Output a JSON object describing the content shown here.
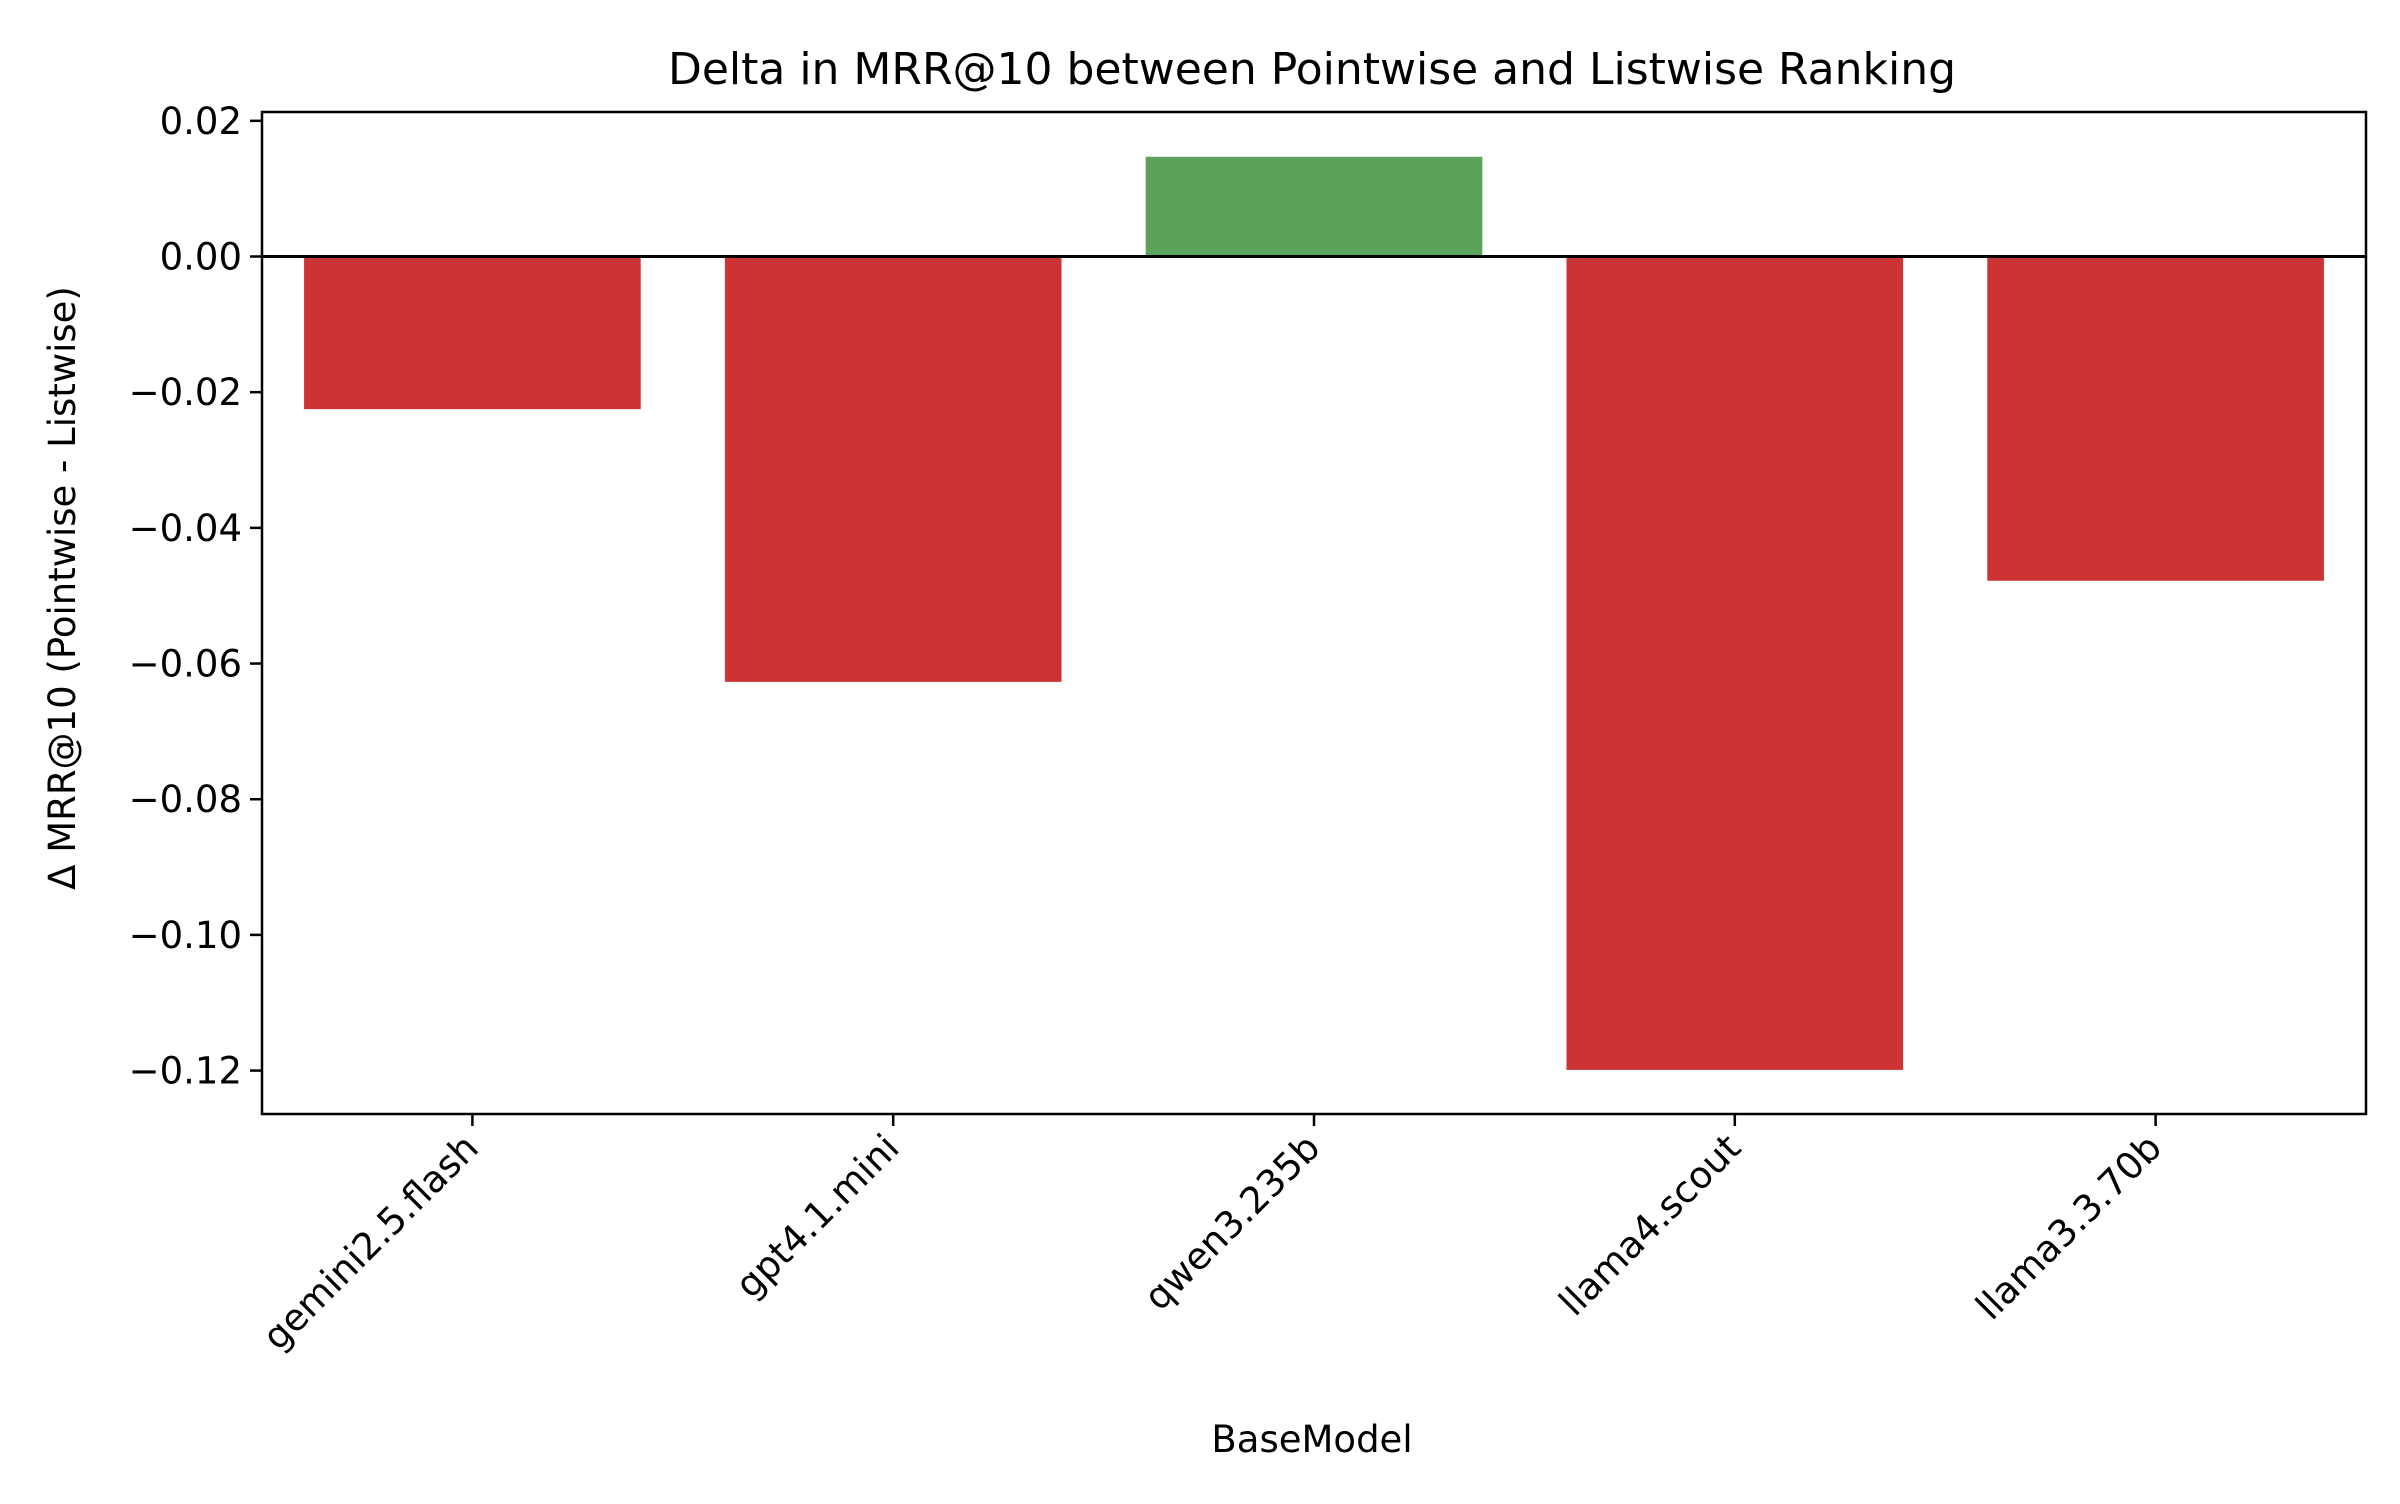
{
  "chart_data": {
    "type": "bar",
    "title": "Delta in MRR@10 between Pointwise and Listwise Ranking",
    "xlabel": "BaseModel",
    "ylabel": "Δ MRR@10 (Pointwise - Listwise)",
    "categories": [
      "gemini2.5.flash",
      "gpt4.1.mini",
      "qwen3.235b",
      "llama4.scout",
      "llama3.3.70b"
    ],
    "values": [
      -0.0225,
      -0.0627,
      0.0147,
      -0.1199,
      -0.0478
    ],
    "ylim": [
      -0.1264,
      0.0213
    ],
    "yticks": [
      0.02,
      0.0,
      -0.02,
      -0.04,
      -0.06,
      -0.08,
      -0.1,
      -0.12
    ],
    "ytick_labels": [
      "0.02",
      "0.00",
      "−0.02",
      "−0.04",
      "−0.06",
      "−0.08",
      "−0.10",
      "−0.12"
    ],
    "zero_line": true,
    "grid": false,
    "legend": "none",
    "colors": {
      "positive": "#5ba35a",
      "negative": "#cc3335",
      "axis": "#000000"
    }
  }
}
